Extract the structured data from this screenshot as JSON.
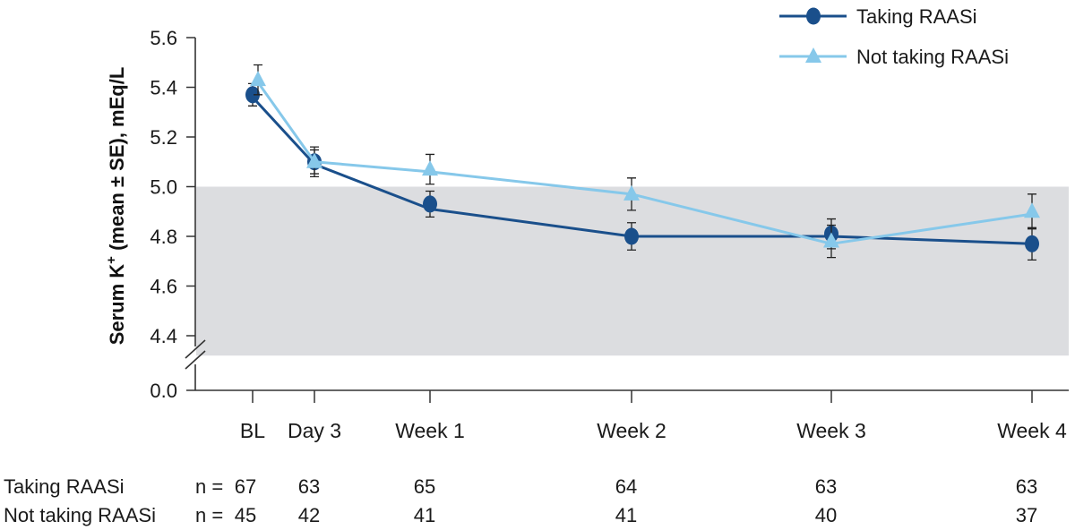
{
  "chart_data": {
    "type": "line",
    "ylabel_main": "Serum K",
    "ylabel_sup": "+",
    "ylabel_rest": " (mean ± SE), mEq/L",
    "categories": [
      "BL",
      "Day 3",
      "Week 1",
      "Week 2",
      "Week 3",
      "Week 4"
    ],
    "x_days": [
      0,
      3,
      7,
      14,
      21,
      28
    ],
    "ylim": [
      4.3,
      5.6
    ],
    "yticks": [
      "5.6",
      "5.4",
      "5.2",
      "5.0",
      "4.8",
      "4.6",
      "4.4"
    ],
    "ytick_values": [
      5.6,
      5.4,
      5.2,
      5.0,
      4.8,
      4.6,
      4.4
    ],
    "ybreak_label": "0.0",
    "axis_break": true,
    "shaded_band": {
      "from": 4.32,
      "to": 5.0,
      "color": "#dcdde0"
    },
    "series": [
      {
        "name": "Taking RAASi",
        "color": "#1a4f8b",
        "marker": "circle",
        "values": [
          5.37,
          5.1,
          4.93,
          4.8,
          4.81,
          4.77
        ],
        "line_values": [
          5.36,
          5.09,
          4.91,
          4.8,
          4.8,
          4.77
        ],
        "se": [
          0.045,
          0.048,
          0.052,
          0.055,
          0.06,
          0.065
        ]
      },
      {
        "name": "Not taking RAASi",
        "color": "#86c8ea",
        "marker": "triangle",
        "values": [
          5.43,
          5.1,
          5.07,
          4.97,
          4.78,
          4.9
        ],
        "line_values": [
          5.42,
          5.1,
          5.06,
          4.97,
          4.77,
          4.89
        ],
        "se": [
          0.06,
          0.06,
          0.06,
          0.065,
          0.065,
          0.07
        ]
      }
    ],
    "legend_position": "top-right",
    "n_table": {
      "prefix": "n =",
      "rows": [
        {
          "label": "Taking RAASi",
          "values": [
            "67",
            "63",
            "65",
            "64",
            "63",
            "63"
          ]
        },
        {
          "label": "Not taking RAASi",
          "values": [
            "45",
            "42",
            "41",
            "41",
            "40",
            "37"
          ]
        }
      ]
    }
  }
}
